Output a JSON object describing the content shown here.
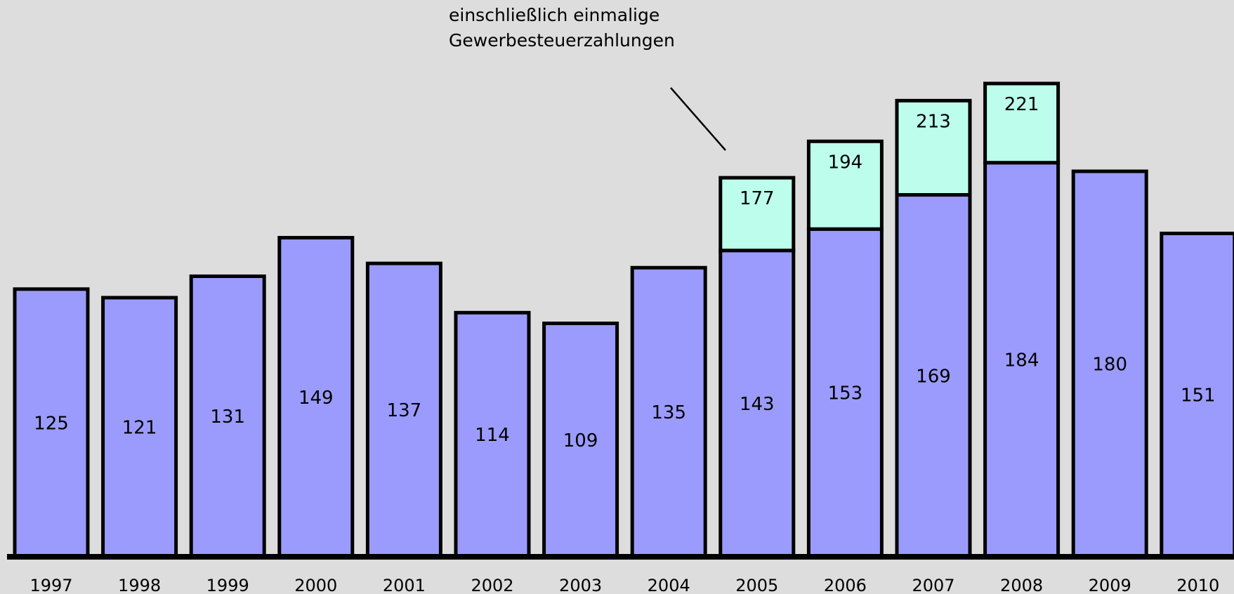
{
  "chart_data": {
    "type": "bar",
    "categories": [
      "1997",
      "1998",
      "1999",
      "2000",
      "2001",
      "2002",
      "2003",
      "2004",
      "2005",
      "2006",
      "2007",
      "2008",
      "2009",
      "2010"
    ],
    "series": [
      {
        "values": [
          125,
          121,
          131,
          149,
          137,
          114,
          109,
          135,
          143,
          153,
          169,
          184,
          180,
          151
        ]
      },
      {
        "values": [
          null,
          null,
          null,
          null,
          null,
          null,
          null,
          null,
          177,
          194,
          213,
          221,
          null,
          null
        ]
      }
    ],
    "data_labels_base": [
      "125",
      "121",
      "131",
      "149",
      "137",
      "114",
      "109",
      "135",
      "143",
      "153",
      "169",
      "184",
      "180",
      "151"
    ],
    "data_labels_total": [
      "",
      "",
      "",
      "",
      "",
      "",
      "",
      "",
      "177",
      "194",
      "213",
      "221",
      "",
      ""
    ],
    "annotation": {
      "lines": [
        "einschließlich einmalige",
        "Gewerbesteuerzahlungen"
      ],
      "points_to": "2005"
    },
    "ylim": [
      0,
      235
    ],
    "grid": false,
    "legend": "none",
    "colors": {
      "base": "#9b9bfe",
      "extra": "#bdfdeb",
      "outline": "#000000",
      "background": "#dddddd"
    }
  }
}
